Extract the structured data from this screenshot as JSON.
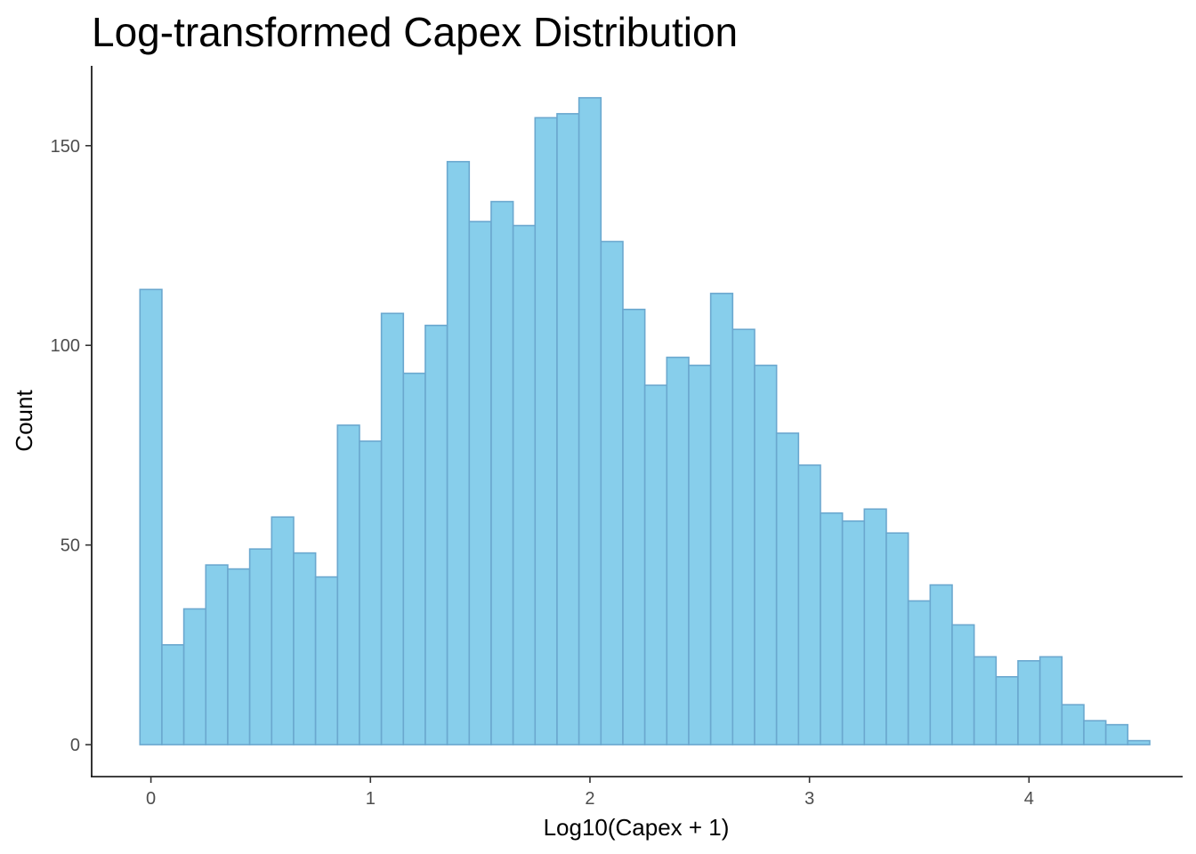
{
  "chart_data": {
    "type": "bar",
    "title": "Log-transformed Capex Distribution",
    "xlabel": "Log10(Capex + 1)",
    "ylabel": "Count",
    "x_ticks": [
      0,
      1,
      2,
      3,
      4
    ],
    "y_ticks": [
      0,
      50,
      100,
      150
    ],
    "xlim": [
      -0.27,
      4.7
    ],
    "ylim": [
      -8,
      170
    ],
    "bin_width": 0.1,
    "bin_centers": [
      0.0,
      0.1,
      0.2,
      0.3,
      0.4,
      0.5,
      0.6,
      0.7,
      0.8,
      0.9,
      1.0,
      1.1,
      1.2,
      1.3,
      1.4,
      1.5,
      1.6,
      1.7,
      1.8,
      1.9,
      2.0,
      2.1,
      2.2,
      2.3,
      2.4,
      2.5,
      2.6,
      2.7,
      2.8,
      2.9,
      3.0,
      3.1,
      3.2,
      3.3,
      3.4,
      3.5,
      3.6,
      3.7,
      3.8,
      3.9,
      4.0,
      4.1,
      4.2,
      4.3,
      4.4,
      4.5
    ],
    "values": [
      114,
      25,
      34,
      45,
      44,
      49,
      57,
      48,
      42,
      80,
      76,
      108,
      93,
      105,
      146,
      131,
      136,
      130,
      157,
      158,
      162,
      126,
      109,
      90,
      97,
      95,
      113,
      104,
      95,
      78,
      70,
      58,
      56,
      59,
      53,
      36,
      40,
      30,
      22,
      17,
      21,
      22,
      10,
      6,
      5,
      1
    ],
    "bar_fill": "#87CEEB",
    "bar_outline": "#6BA8CF",
    "grid": false,
    "legend": "none"
  }
}
